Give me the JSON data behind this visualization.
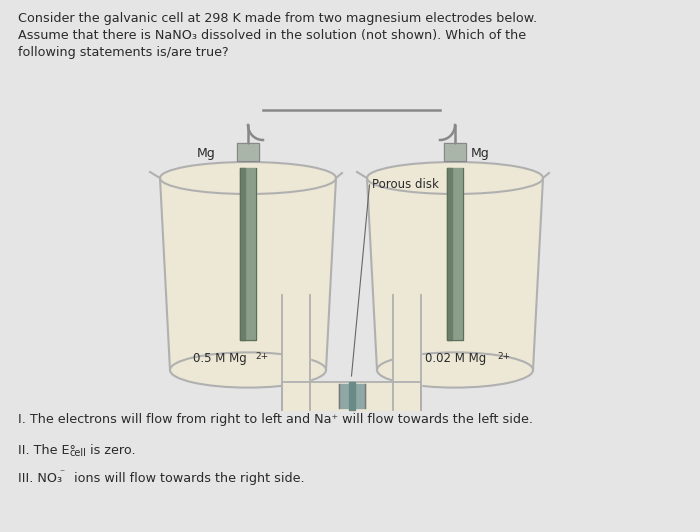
{
  "bg_color": "#e5e5e5",
  "title_line1": "Consider the galvanic cell at 298 K made from two magnesium electrodes below.",
  "title_line2": "Assume that there is NaNO₃ dissolved in the solution (not shown). Which of the",
  "title_line3": "following statements is/are true?",
  "statement_I": "I. The electrons will flow from right to left and Na⁺ will flow towards the left side.",
  "statement_II_pre": "II. The E°",
  "statement_II_sub": "cell",
  "statement_II_post": " is zero.",
  "statement_III_pre": "III. NO₃",
  "statement_III_sup": "⁻",
  "statement_III_post": " ions will flow towards the right side.",
  "left_label": "0.5 M Mg",
  "left_label_sup": "2+",
  "right_label": "0.02 M Mg",
  "right_label_sup": "2+",
  "mg_left": "Mg",
  "mg_right": "Mg",
  "porous_disk": "Porous disk",
  "beaker_fill": "#ede8d5",
  "beaker_edge": "#b0b0b0",
  "beaker_glass": "#d4d8d4",
  "electrode_color": "#8a9e8a",
  "electrode_dark": "#6a7e6a",
  "wire_color": "#888888",
  "cap_color": "#aab5aa",
  "porous_disk_color": "#8fa8a5",
  "connector_fill": "#c5cfc5",
  "text_color": "#2a2a2a",
  "text_color2": "#444444"
}
